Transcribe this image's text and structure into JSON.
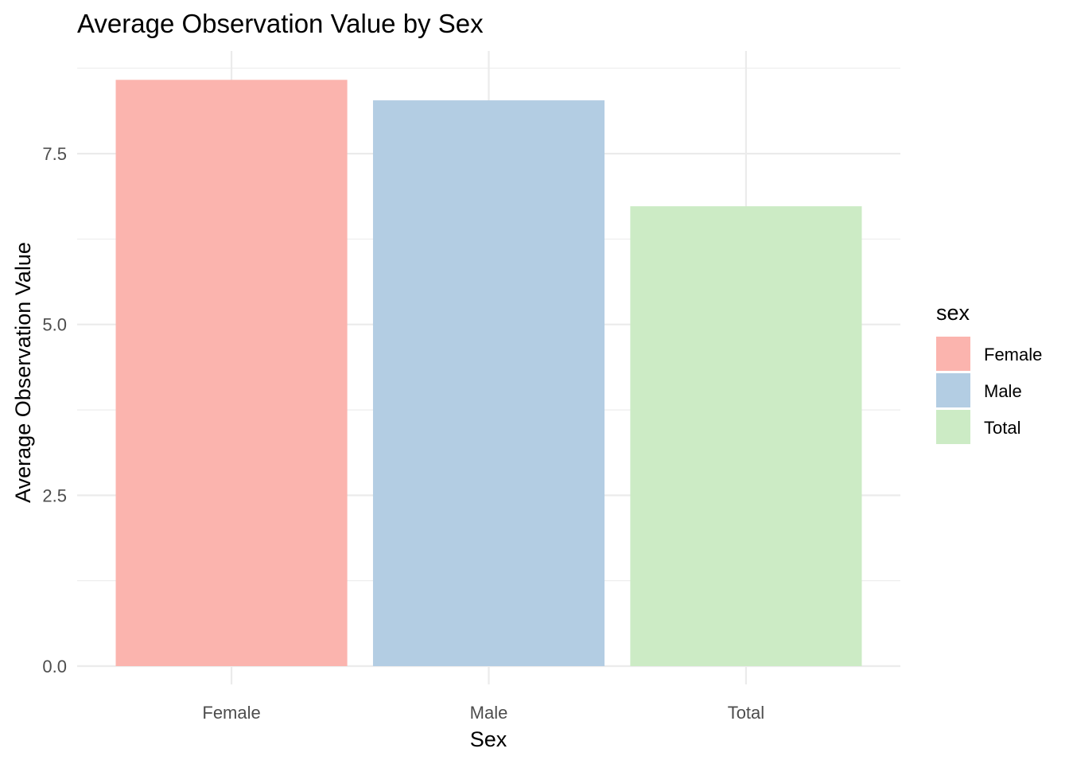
{
  "chart_data": {
    "type": "bar",
    "title": "Average Observation Value by Sex",
    "xlabel": "Sex",
    "ylabel": "Average Observation Value",
    "categories": [
      "Female",
      "Male",
      "Total"
    ],
    "values": [
      8.58,
      8.28,
      6.73
    ],
    "ylim": [
      0,
      8.87
    ],
    "yticks": [
      0.0,
      2.5,
      5.0,
      7.5
    ],
    "ytick_labels": [
      "0.0",
      "2.5",
      "5.0",
      "7.5"
    ],
    "grid": true,
    "legend": {
      "title": "sex",
      "placement": "right",
      "entries": [
        "Female",
        "Male",
        "Total"
      ]
    },
    "colors": [
      "#FBB4AE",
      "#B3CDE3",
      "#CCEBC5"
    ]
  }
}
